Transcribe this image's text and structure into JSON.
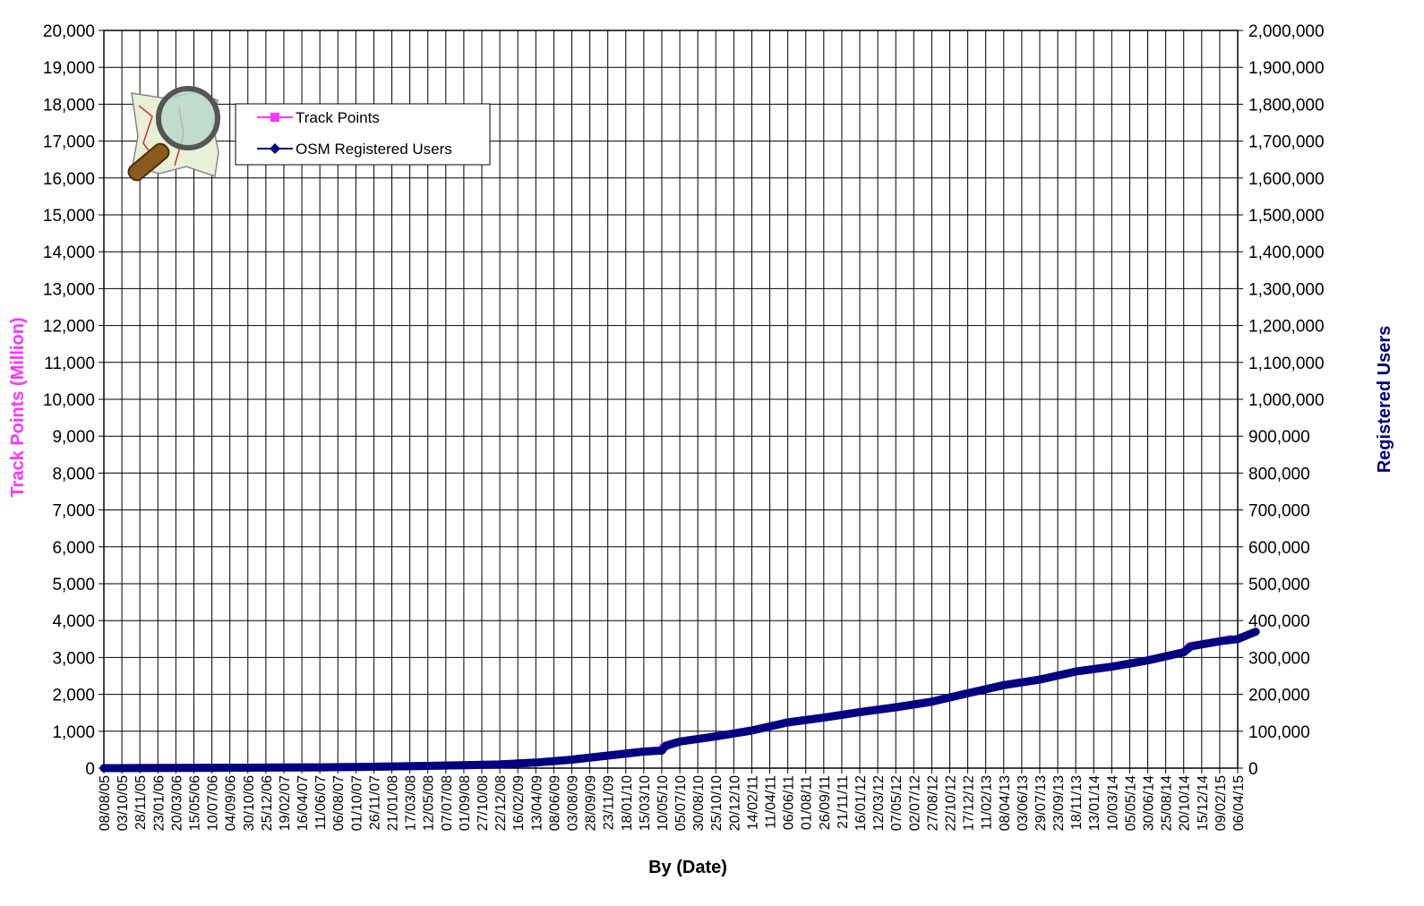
{
  "chart_data": {
    "type": "line",
    "xlabel": "By (Date)",
    "ylabel_left": "Track Points (Million)",
    "ylabel_right": "Registered Users",
    "ylim_left": [
      0,
      20000
    ],
    "ylim_right": [
      0,
      2000000
    ],
    "y_ticks_left": [
      "0",
      "1,000",
      "2,000",
      "3,000",
      "4,000",
      "5,000",
      "6,000",
      "7,000",
      "8,000",
      "9,000",
      "10,000",
      "11,000",
      "12,000",
      "13,000",
      "14,000",
      "15,000",
      "16,000",
      "17,000",
      "18,000",
      "19,000",
      "20,000"
    ],
    "y_ticks_right": [
      "0",
      "100,000",
      "200,000",
      "300,000",
      "400,000",
      "500,000",
      "600,000",
      "700,000",
      "800,000",
      "900,000",
      "1,000,000",
      "1,100,000",
      "1,200,000",
      "1,300,000",
      "1,400,000",
      "1,500,000",
      "1,600,000",
      "1,700,000",
      "1,800,000",
      "1,900,000",
      "2,000,000"
    ],
    "x_ticks": [
      "08/08/05",
      "03/10/05",
      "28/11/05",
      "23/01/06",
      "20/03/06",
      "15/05/06",
      "10/07/06",
      "04/09/06",
      "30/10/06",
      "25/12/06",
      "19/02/07",
      "16/04/07",
      "11/06/07",
      "06/08/07",
      "01/10/07",
      "26/11/07",
      "21/01/08",
      "17/03/08",
      "12/05/08",
      "07/07/08",
      "01/09/08",
      "27/10/08",
      "22/12/08",
      "16/02/09",
      "13/04/09",
      "08/06/09",
      "03/08/09",
      "28/09/09",
      "23/11/09",
      "18/01/10",
      "15/03/10",
      "10/05/10",
      "05/07/10",
      "30/08/10",
      "25/10/10",
      "20/12/10",
      "14/02/11",
      "11/04/11",
      "06/06/11",
      "01/08/11",
      "26/09/11",
      "21/11/11",
      "16/01/12",
      "12/03/12",
      "07/05/12",
      "02/07/12",
      "27/08/12",
      "22/10/12",
      "17/12/12",
      "11/02/13",
      "08/04/13",
      "03/06/13",
      "29/07/13",
      "23/09/13",
      "18/11/13",
      "13/01/14",
      "10/03/14",
      "05/05/14",
      "30/06/14",
      "25/08/14",
      "20/10/14",
      "15/12/14",
      "09/02/15",
      "06/04/15"
    ],
    "grid": true,
    "legend_position": "top-left",
    "series": [
      {
        "name": "Track Points",
        "axis": "left",
        "color": "#ff33ff",
        "marker": "square",
        "x": [
          0,
          2,
          4,
          6,
          8,
          10,
          12,
          14,
          16,
          18,
          20,
          22,
          24,
          26,
          28,
          30,
          31,
          31.1,
          32,
          34,
          36,
          38,
          40,
          42,
          44,
          46,
          48,
          50,
          52,
          54,
          56,
          58,
          60,
          60.3,
          62,
          62.6
        ],
        "y": [
          0,
          3,
          6,
          9,
          12,
          16,
          22,
          30,
          45,
          60,
          80,
          100,
          150,
          230,
          340,
          450,
          475,
          600,
          720,
          860,
          1020,
          1240,
          1370,
          1520,
          1650,
          1800,
          2030,
          2250,
          2400,
          2620,
          2750,
          2920,
          3140,
          3300,
          3440,
          3500
        ]
      },
      {
        "name": "OSM Registered Users",
        "axis": "left",
        "color": "#000080",
        "marker": "diamond",
        "x": [
          0,
          2,
          4,
          6,
          8,
          10,
          12,
          14,
          16,
          18,
          20,
          22,
          24,
          26,
          28,
          30,
          31,
          31.2,
          32,
          34,
          36,
          38,
          40,
          42,
          44,
          46,
          48,
          50,
          52,
          54,
          56,
          58,
          60,
          60.4,
          62,
          63,
          64
        ],
        "y": [
          0,
          3,
          6,
          9,
          12,
          16,
          22,
          30,
          45,
          60,
          80,
          100,
          150,
          230,
          340,
          450,
          475,
          600,
          720,
          860,
          1020,
          1240,
          1370,
          1520,
          1650,
          1800,
          2030,
          2250,
          2400,
          2620,
          2750,
          2920,
          3140,
          3300,
          3440,
          3500,
          3700
        ]
      }
    ]
  }
}
